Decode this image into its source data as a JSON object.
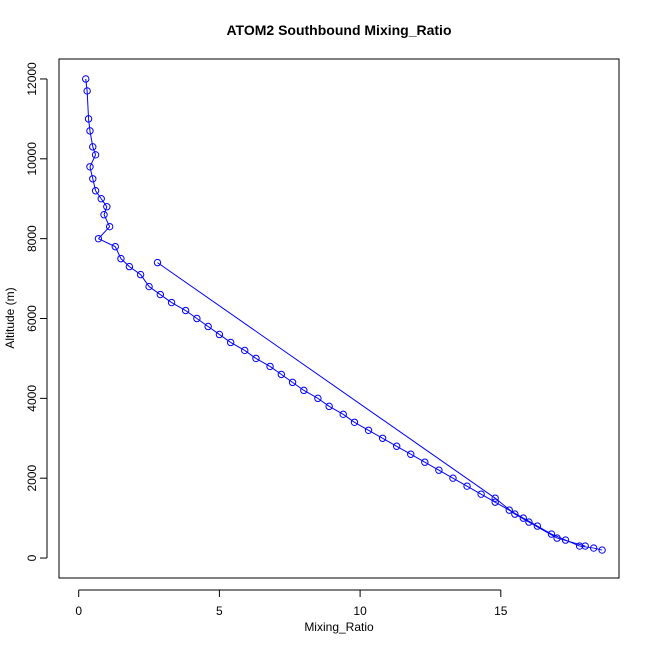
{
  "chart_data": {
    "type": "scatter",
    "title": "ATOM2 Southbound Mixing_Ratio",
    "xlabel": "Mixing_Ratio",
    "ylabel": "Altitude (m)",
    "xlim": [
      -0.7,
      19.2
    ],
    "ylim": [
      -500,
      12500
    ],
    "x_ticks": [
      0,
      5,
      10,
      15
    ],
    "y_ticks": [
      0,
      2000,
      4000,
      6000,
      8000,
      10000,
      12000
    ],
    "grid": false,
    "legend": "none",
    "colors": {
      "series": "#0000ff",
      "axis": "#000000",
      "background": "#ffffff"
    },
    "marker": "open-circle",
    "series": [
      {
        "values": [
          [
            0.25,
            12000
          ],
          [
            0.3,
            11700
          ],
          [
            0.35,
            11000
          ],
          [
            0.4,
            10700
          ],
          [
            0.5,
            10300
          ],
          [
            0.6,
            10100
          ],
          [
            0.4,
            9800
          ],
          [
            0.5,
            9500
          ],
          [
            0.6,
            9200
          ],
          [
            0.8,
            9000
          ],
          [
            1.0,
            8800
          ],
          [
            0.9,
            8600
          ],
          [
            1.1,
            8300
          ],
          [
            0.7,
            8000
          ],
          [
            1.3,
            7800
          ],
          [
            1.5,
            7500
          ],
          [
            1.8,
            7300
          ],
          [
            2.2,
            7100
          ],
          [
            2.5,
            6800
          ],
          [
            2.9,
            6600
          ],
          [
            3.3,
            6400
          ],
          [
            3.8,
            6200
          ],
          [
            4.2,
            6000
          ],
          [
            4.6,
            5800
          ],
          [
            5.0,
            5600
          ],
          [
            5.4,
            5400
          ],
          [
            5.9,
            5200
          ],
          [
            6.3,
            5000
          ],
          [
            6.8,
            4800
          ],
          [
            7.2,
            4600
          ],
          [
            7.6,
            4400
          ],
          [
            8.0,
            4200
          ],
          [
            8.5,
            4000
          ],
          [
            8.9,
            3800
          ],
          [
            9.4,
            3600
          ],
          [
            9.8,
            3400
          ],
          [
            10.3,
            3200
          ],
          [
            10.8,
            3000
          ],
          [
            11.3,
            2800
          ],
          [
            11.8,
            2600
          ],
          [
            12.3,
            2400
          ],
          [
            12.8,
            2200
          ],
          [
            13.3,
            2000
          ],
          [
            13.8,
            1800
          ],
          [
            14.3,
            1600
          ],
          [
            14.8,
            1400
          ],
          [
            15.3,
            1200
          ],
          [
            15.8,
            1000
          ],
          [
            16.3,
            800
          ],
          [
            16.8,
            600
          ],
          [
            17.3,
            450
          ],
          [
            17.8,
            300
          ],
          [
            18.3,
            250
          ],
          [
            18.6,
            200
          ]
        ]
      },
      {
        "values": [
          [
            2.8,
            7400
          ],
          [
            14.8,
            1500
          ],
          [
            15.5,
            1100
          ],
          [
            16.0,
            900
          ],
          [
            17.0,
            500
          ],
          [
            18.0,
            300
          ]
        ]
      }
    ]
  }
}
